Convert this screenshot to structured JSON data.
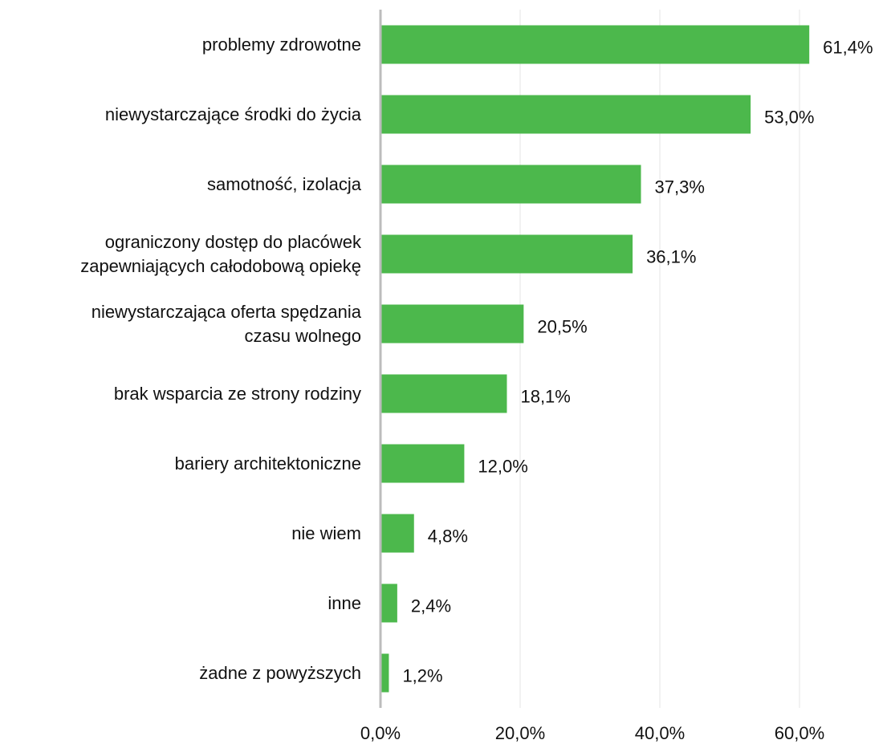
{
  "chart_data": {
    "type": "bar",
    "orientation": "horizontal",
    "categories": [
      "problemy zdrowotne",
      "niewystarczające środki do życia",
      "samotność, izolacja",
      "ograniczony dostęp do placówek\nzapewniających całodobową opiekę",
      "niewystarczająca oferta spędzania\nczasu wolnego",
      "brak wsparcia ze strony rodziny",
      "bariery architektoniczne",
      "nie wiem",
      "inne",
      "żadne z powyższych"
    ],
    "values": [
      61.4,
      53.0,
      37.3,
      36.1,
      20.5,
      18.1,
      12.0,
      4.8,
      2.4,
      1.2
    ],
    "value_labels": [
      "61,4%",
      "53,0%",
      "37,3%",
      "36,1%",
      "20,5%",
      "18,1%",
      "12,0%",
      "4,8%",
      "2,4%",
      "1,2%"
    ],
    "color": "#4cb84c",
    "xlim": [
      0,
      70
    ],
    "xticks": [
      {
        "value": 0,
        "label": "0,0%"
      },
      {
        "value": 20,
        "label": "20,0%"
      },
      {
        "value": 40,
        "label": "40,0%"
      },
      {
        "value": 60,
        "label": "60,0%"
      }
    ],
    "grid": true
  }
}
